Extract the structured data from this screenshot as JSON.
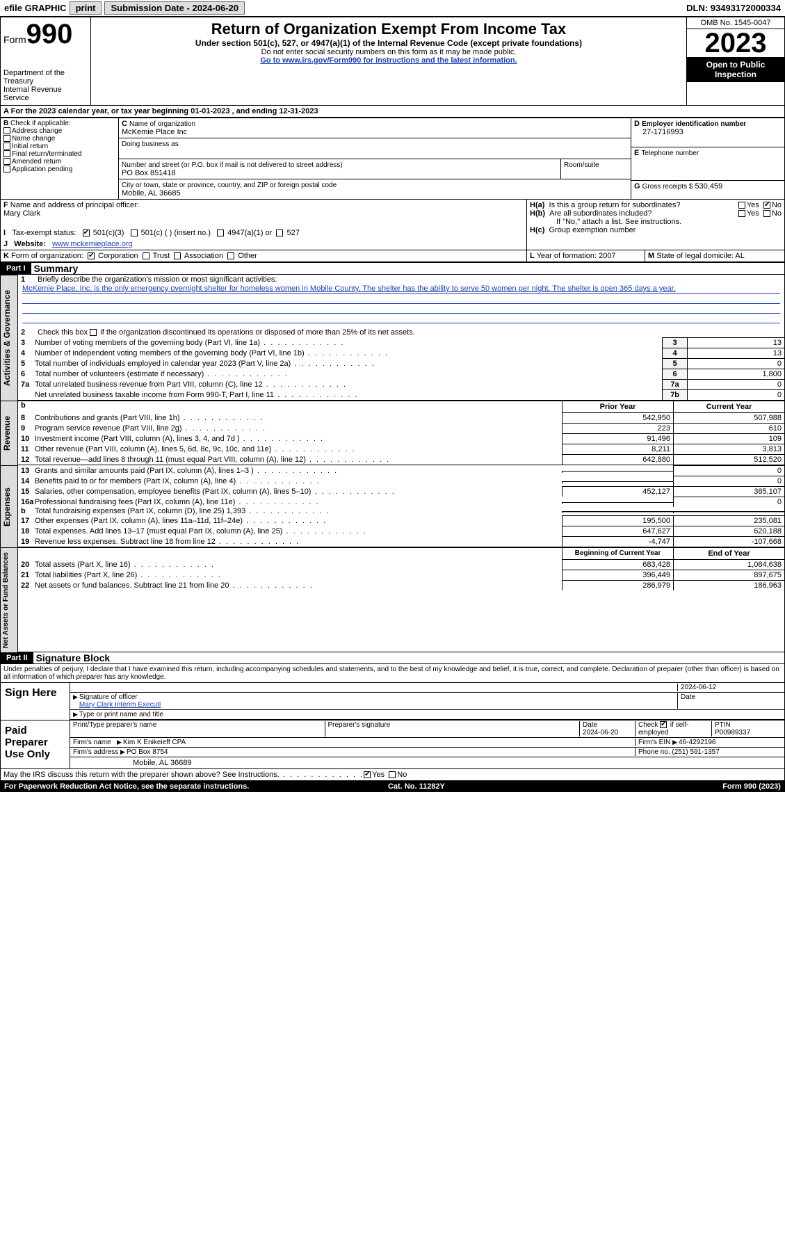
{
  "topbar": {
    "efile": "efile GRAPHIC",
    "print": "print",
    "submission": "Submission Date - 2024-06-20",
    "dln": "DLN: 93493172000334"
  },
  "header": {
    "form_label": "Form",
    "form_no": "990",
    "dept": "Department of the Treasury",
    "irs": "Internal Revenue Service",
    "title": "Return of Organization Exempt From Income Tax",
    "sub": "Under section 501(c), 527, or 4947(a)(1) of the Internal Revenue Code (except private foundations)",
    "note1": "Do not enter social security numbers on this form as it may be made public.",
    "note2": "Go to www.irs.gov/Form990 for instructions and the latest information.",
    "omb": "OMB No. 1545-0047",
    "year": "2023",
    "inspect": "Open to Public Inspection"
  },
  "A": {
    "text": "For the 2023 calendar year, or tax year beginning 01-01-2023   , and ending 12-31-2023"
  },
  "B": {
    "label": "Check if applicable:",
    "opts": [
      "Address change",
      "Name change",
      "Initial return",
      "Final return/terminated",
      "Amended return",
      "Application pending"
    ]
  },
  "C": {
    "name_lbl": "Name of organization",
    "name": "McKemie Place Inc",
    "dba_lbl": "Doing business as",
    "street_lbl": "Number and street (or P.O. box if mail is not delivered to street address)",
    "street": "PO Box 851418",
    "room_lbl": "Room/suite",
    "city_lbl": "City or town, state or province, country, and ZIP or foreign postal code",
    "city": "Mobile, AL  36685"
  },
  "D": {
    "lbl": "Employer identification number",
    "val": "27-1716993"
  },
  "E": {
    "lbl": "Telephone number"
  },
  "G": {
    "lbl": "Gross receipts $",
    "val": "530,459"
  },
  "F": {
    "lbl": "Name and address of principal officer:",
    "name": "Mary Clark"
  },
  "H": {
    "a": "Is this a group return for subordinates?",
    "b": "Are all subordinates included?",
    "b_note": "If \"No,\" attach a list. See instructions.",
    "c": "Group exemption number"
  },
  "I": {
    "lbl": "Tax-exempt status:",
    "o1": "501(c)(3)",
    "o2": "501(c) (  ) (insert no.)",
    "o3": "4947(a)(1) or",
    "o4": "527"
  },
  "J": {
    "lbl": "Website:",
    "val": "www.mckemieplace.org"
  },
  "K": {
    "lbl": "Form of organization:",
    "o1": "Corporation",
    "o2": "Trust",
    "o3": "Association",
    "o4": "Other"
  },
  "L": {
    "lbl": "Year of formation:",
    "val": "2007"
  },
  "M": {
    "lbl": "State of legal domicile:",
    "val": "AL"
  },
  "part1": {
    "hdr": "Part I",
    "title": "Summary",
    "l1": "Briefly describe the organization's mission or most significant activities:",
    "mission": "McKemie Place, Inc. is the only emergency overnight shelter for homeless women in Mobile County. The shelter has the ability to serve 50 women per night. The shelter is open 365 days a year.",
    "l2": "Check this box       if the organization discontinued its operations or disposed of more than 25% of its net assets.",
    "lines_gov": [
      {
        "n": "3",
        "t": "Number of voting members of the governing body (Part VI, line 1a)",
        "box": "3",
        "v": "13"
      },
      {
        "n": "4",
        "t": "Number of independent voting members of the governing body (Part VI, line 1b)",
        "box": "4",
        "v": "13"
      },
      {
        "n": "5",
        "t": "Total number of individuals employed in calendar year 2023 (Part V, line 2a)",
        "box": "5",
        "v": "0"
      },
      {
        "n": "6",
        "t": "Total number of volunteers (estimate if necessary)",
        "box": "6",
        "v": "1,800"
      },
      {
        "n": "7a",
        "t": "Total unrelated business revenue from Part VIII, column (C), line 12",
        "box": "7a",
        "v": "0"
      },
      {
        "n": "",
        "t": "Net unrelated business taxable income from Form 990-T, Part I, line 11",
        "box": "7b",
        "v": "0"
      }
    ],
    "col_prior": "Prior Year",
    "col_curr": "Current Year",
    "revenue": [
      {
        "n": "8",
        "t": "Contributions and grants (Part VIII, line 1h)",
        "p": "542,950",
        "c": "507,988"
      },
      {
        "n": "9",
        "t": "Program service revenue (Part VIII, line 2g)",
        "p": "223",
        "c": "610"
      },
      {
        "n": "10",
        "t": "Investment income (Part VIII, column (A), lines 3, 4, and 7d )",
        "p": "91,496",
        "c": "109"
      },
      {
        "n": "11",
        "t": "Other revenue (Part VIII, column (A), lines 5, 6d, 8c, 9c, 10c, and 11e)",
        "p": "8,211",
        "c": "3,813"
      },
      {
        "n": "12",
        "t": "Total revenue—add lines 8 through 11 (must equal Part VIII, column (A), line 12)",
        "p": "642,880",
        "c": "512,520"
      }
    ],
    "expenses": [
      {
        "n": "13",
        "t": "Grants and similar amounts paid (Part IX, column (A), lines 1–3 )",
        "p": "",
        "c": "0"
      },
      {
        "n": "14",
        "t": "Benefits paid to or for members (Part IX, column (A), line 4)",
        "p": "",
        "c": "0"
      },
      {
        "n": "15",
        "t": "Salaries, other compensation, employee benefits (Part IX, column (A), lines 5–10)",
        "p": "452,127",
        "c": "385,107"
      },
      {
        "n": "16a",
        "t": "Professional fundraising fees (Part IX, column (A), line 11e)",
        "p": "",
        "c": "0"
      },
      {
        "n": "b",
        "t": "Total fundraising expenses (Part IX, column (D), line 25) 1,393",
        "p": "grey",
        "c": "grey"
      },
      {
        "n": "17",
        "t": "Other expenses (Part IX, column (A), lines 11a–11d, 11f–24e)",
        "p": "195,500",
        "c": "235,081"
      },
      {
        "n": "18",
        "t": "Total expenses. Add lines 13–17 (must equal Part IX, column (A), line 25)",
        "p": "647,627",
        "c": "620,188"
      },
      {
        "n": "19",
        "t": "Revenue less expenses. Subtract line 18 from line 12",
        "p": "-4,747",
        "c": "-107,668"
      }
    ],
    "col_begin": "Beginning of Current Year",
    "col_end": "End of Year",
    "net": [
      {
        "n": "20",
        "t": "Total assets (Part X, line 16)",
        "p": "683,428",
        "c": "1,084,638"
      },
      {
        "n": "21",
        "t": "Total liabilities (Part X, line 26)",
        "p": "396,449",
        "c": "897,675"
      },
      {
        "n": "22",
        "t": "Net assets or fund balances. Subtract line 21 from line 20",
        "p": "286,979",
        "c": "186,963"
      }
    ]
  },
  "part2": {
    "hdr": "Part II",
    "title": "Signature Block",
    "decl": "Under penalties of perjury, I declare that I have examined this return, including accompanying schedules and statements, and to the best of my knowledge and belief, it is true, correct, and complete. Declaration of preparer (other than officer) is based on all information of which preparer has any knowledge.",
    "sign_here": "Sign Here",
    "sig_date": "2024-06-12",
    "sig_officer_lbl": "Signature of officer",
    "sig_officer": "Mary Clark  Interim Executi",
    "sig_type_lbl": "Type or print name and title",
    "date_lbl": "Date",
    "paid": "Paid Preparer Use Only",
    "prep_name_lbl": "Print/Type preparer's name",
    "prep_sig_lbl": "Preparer's signature",
    "prep_date": "2024-06-20",
    "check_self_lbl": "Check        if self-employed",
    "ptin_lbl": "PTIN",
    "ptin": "P00989337",
    "firm_name_lbl": "Firm's name",
    "firm_name": "Kim K Enikeieff CPA",
    "firm_ein_lbl": "Firm's EIN",
    "firm_ein": "46-4292196",
    "firm_addr_lbl": "Firm's address",
    "firm_addr1": "PO Box 8754",
    "firm_addr2": "Mobile, AL  36689",
    "phone_lbl": "Phone no.",
    "phone": "(251) 591-1357",
    "discuss": "May the IRS discuss this return with the preparer shown above? See Instructions."
  },
  "footer": {
    "left": "For Paperwork Reduction Act Notice, see the separate instructions.",
    "mid": "Cat. No. 11282Y",
    "right": "Form 990 (2023)"
  },
  "tabs": {
    "gov": "Activities & Governance",
    "rev": "Revenue",
    "exp": "Expenses",
    "net": "Net Assets or Fund Balances"
  },
  "yn": {
    "yes": "Yes",
    "no": "No"
  }
}
